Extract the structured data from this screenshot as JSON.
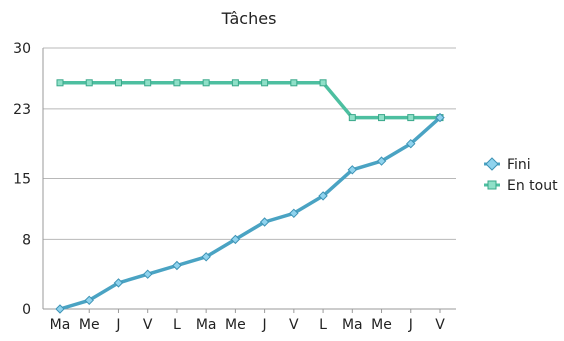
{
  "chart_data": {
    "type": "line",
    "title": "Tâches",
    "xlabel": "",
    "ylabel": "",
    "categories": [
      "Ma",
      "Me",
      "J",
      "V",
      "L",
      "Ma",
      "Me",
      "J",
      "V",
      "L",
      "Ma",
      "Me",
      "J",
      "V"
    ],
    "yticks": [
      0,
      8,
      15,
      23,
      30
    ],
    "ylim": [
      0,
      30
    ],
    "grid": true,
    "legend_position": "right",
    "series": [
      {
        "name": "Fini",
        "color": "#4aa3c3",
        "marker": "diamond",
        "values": [
          0,
          1,
          3,
          4,
          5,
          6,
          8,
          10,
          11,
          13,
          16,
          17,
          19,
          22
        ]
      },
      {
        "name": "En tout",
        "color": "#4dbfa0",
        "marker": "square",
        "values": [
          26,
          26,
          26,
          26,
          26,
          26,
          26,
          26,
          26,
          26,
          22,
          22,
          22,
          22
        ]
      }
    ]
  }
}
